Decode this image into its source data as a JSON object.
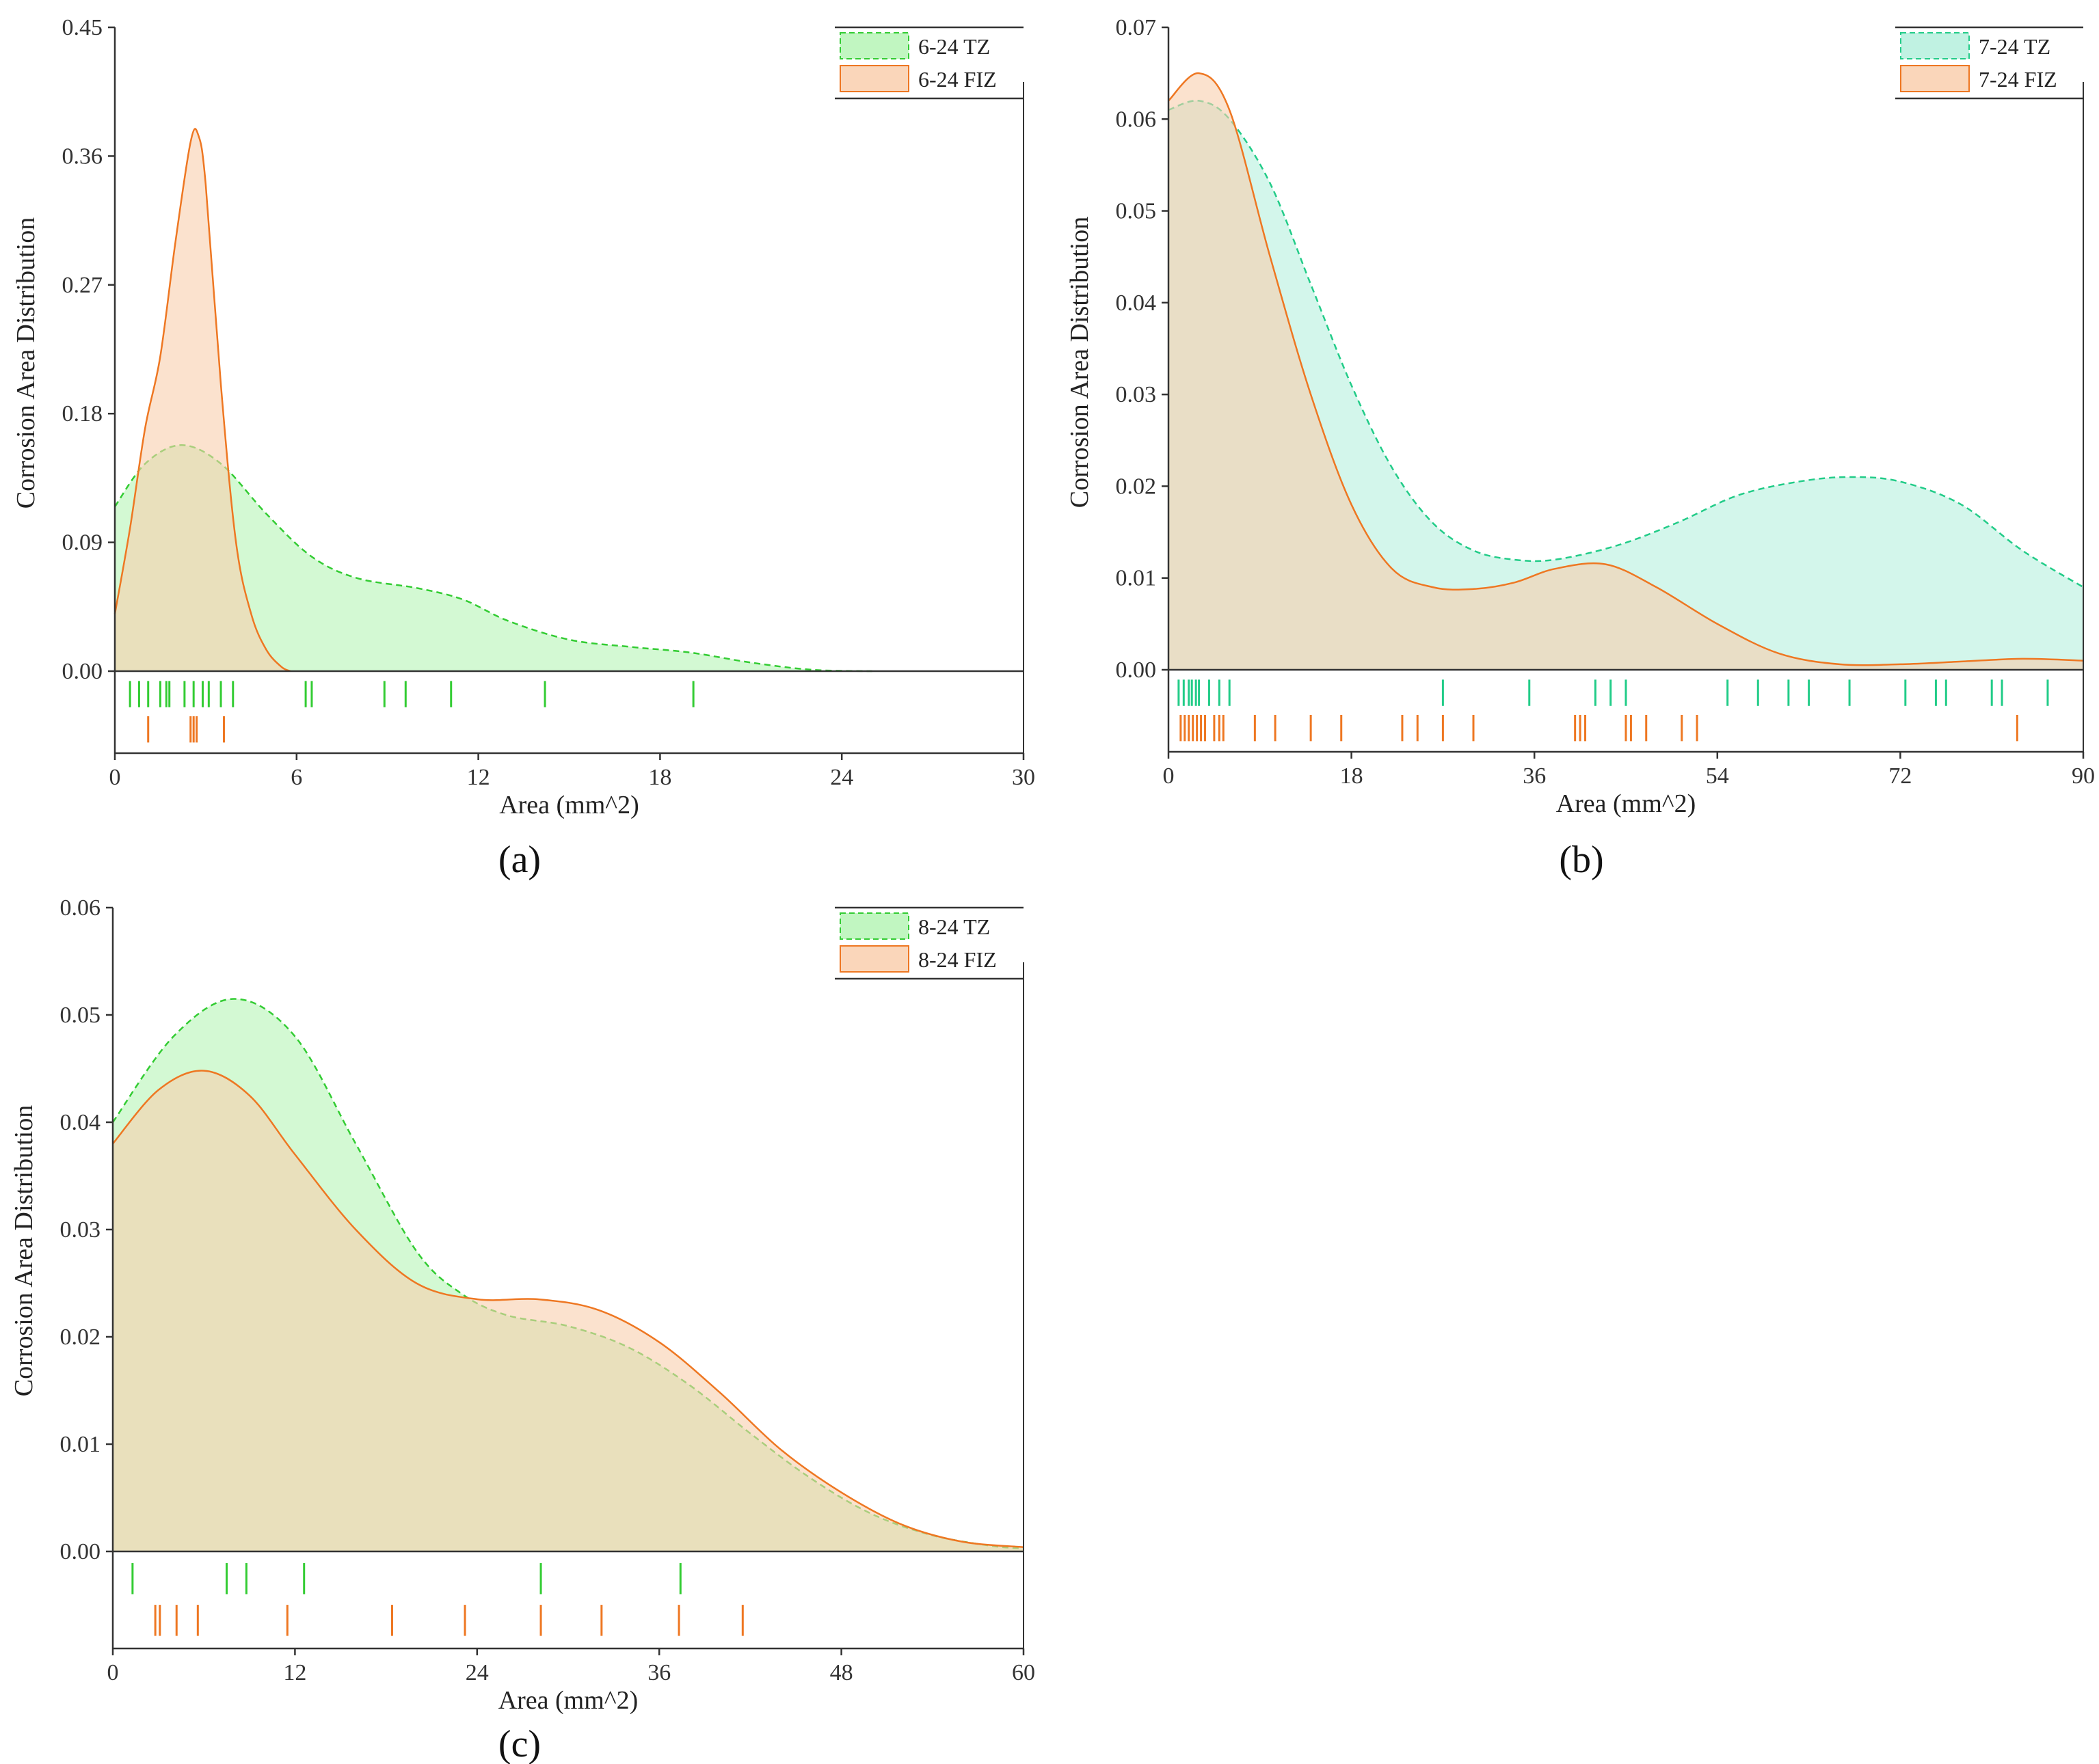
{
  "colors": {
    "tz_a_fill": "#b6f5b6",
    "tz_a_line": "#33cc33",
    "tz_b_fill": "#b5f0dd",
    "tz_b_line": "#22cc88",
    "fiz_fill": "#f9cfae",
    "fiz_line": "#ee7722",
    "fill_opacity": 0.6
  },
  "chart_data": [
    {
      "type": "area",
      "panel": "(a)",
      "xlabel": "Area (mm^2)",
      "ylabel": "Corrosion Area Distribution",
      "xlim": [
        0,
        30
      ],
      "ylim": [
        0,
        0.45
      ],
      "xticks": [
        "0",
        "6",
        "12",
        "18",
        "24",
        "30"
      ],
      "yticks": [
        "0.00",
        "0.09",
        "0.18",
        "0.27",
        "0.36",
        "0.45"
      ],
      "legend_position": "top-right",
      "legend": [
        "6-24 TZ",
        "6-24 FIZ"
      ],
      "series": [
        {
          "name": "6-24 TZ",
          "style": "dashed",
          "x": [
            0,
            1,
            2.2,
            3.5,
            5,
            6.5,
            8,
            10,
            11.5,
            13,
            15,
            17,
            19,
            21,
            23,
            25
          ],
          "y": [
            0.115,
            0.145,
            0.158,
            0.145,
            0.11,
            0.08,
            0.065,
            0.058,
            0.05,
            0.035,
            0.022,
            0.017,
            0.013,
            0.006,
            0.001,
            0
          ]
        },
        {
          "name": "6-24 FIZ",
          "style": "solid",
          "x": [
            0,
            0.5,
            1,
            1.5,
            2,
            2.5,
            2.75,
            3,
            3.5,
            4,
            4.5,
            5,
            5.5,
            5.8
          ],
          "y": [
            0.04,
            0.1,
            0.17,
            0.22,
            0.3,
            0.37,
            0.375,
            0.34,
            0.2,
            0.09,
            0.04,
            0.015,
            0.003,
            0
          ]
        }
      ],
      "rugs": [
        {
          "series": "6-24 TZ",
          "x": [
            0.5,
            0.8,
            1.1,
            1.5,
            1.7,
            1.8,
            2.3,
            2.6,
            2.9,
            3.1,
            3.5,
            3.9,
            6.3,
            6.5,
            8.9,
            9.6,
            11.1,
            14.2,
            19.1
          ]
        },
        {
          "series": "6-24 FIZ",
          "x": [
            1.1,
            2.5,
            2.6,
            2.7,
            3.6
          ]
        }
      ]
    },
    {
      "type": "area",
      "panel": "(b)",
      "xlabel": "Area (mm^2)",
      "ylabel": "Corrosion Area Distribution",
      "xlim": [
        0,
        90
      ],
      "ylim": [
        0,
        0.07
      ],
      "xticks": [
        "0",
        "18",
        "36",
        "54",
        "72",
        "90"
      ],
      "yticks": [
        "0.00",
        "0.01",
        "0.02",
        "0.03",
        "0.04",
        "0.05",
        "0.06",
        "0.07"
      ],
      "legend_position": "top-right",
      "legend": [
        "7-24 TZ",
        "7-24 FIZ"
      ],
      "series": [
        {
          "name": "7-24 TZ",
          "style": "dashed",
          "x": [
            0,
            3,
            6,
            10,
            14,
            18,
            22,
            26,
            30,
            34,
            38,
            44,
            50,
            56,
            62,
            67,
            72,
            78,
            84,
            90
          ],
          "y": [
            0.061,
            0.062,
            0.06,
            0.053,
            0.042,
            0.031,
            0.022,
            0.016,
            0.013,
            0.012,
            0.012,
            0.0135,
            0.016,
            0.019,
            0.0205,
            0.021,
            0.0205,
            0.018,
            0.013,
            0.009
          ]
        },
        {
          "name": "7-24 FIZ",
          "style": "solid",
          "x": [
            0,
            3,
            6,
            10,
            14,
            18,
            22,
            26,
            30,
            34,
            38,
            43,
            48,
            54,
            60,
            66,
            72,
            78,
            84,
            90
          ],
          "y": [
            0.062,
            0.065,
            0.061,
            0.045,
            0.03,
            0.018,
            0.011,
            0.009,
            0.0088,
            0.0095,
            0.011,
            0.0115,
            0.009,
            0.005,
            0.0018,
            0.0006,
            0.0006,
            0.0009,
            0.0012,
            0.001
          ]
        }
      ],
      "rugs": [
        {
          "series": "7-24 TZ",
          "x": [
            1,
            1.5,
            2,
            2.3,
            2.7,
            3,
            4,
            5,
            6,
            27,
            35.5,
            42,
            43.5,
            45,
            55,
            58,
            61,
            63,
            67,
            72.5,
            75.5,
            76.5,
            81,
            82,
            86.5
          ]
        },
        {
          "series": "7-24 FIZ",
          "x": [
            1.2,
            1.6,
            2,
            2.4,
            2.8,
            3.2,
            3.6,
            4.5,
            5,
            5.4,
            8.5,
            10.5,
            14,
            17,
            23,
            24.5,
            27,
            30,
            40,
            40.5,
            41,
            45,
            45.5,
            47,
            50.5,
            52,
            83.5
          ]
        }
      ]
    },
    {
      "type": "area",
      "panel": "(c)",
      "xlabel": "Area (mm^2)",
      "ylabel": "Corrosion Area Distribution",
      "xlim": [
        0,
        60
      ],
      "ylim": [
        0,
        0.06
      ],
      "xticks": [
        "0",
        "12",
        "24",
        "36",
        "48",
        "60"
      ],
      "yticks": [
        "0.00",
        "0.01",
        "0.02",
        "0.03",
        "0.04",
        "0.05",
        "0.06"
      ],
      "legend_position": "top-right",
      "legend": [
        "8-24 TZ",
        "8-24 FIZ"
      ],
      "series": [
        {
          "name": "8-24 TZ",
          "style": "dashed",
          "x": [
            0,
            4,
            8,
            12,
            16,
            20,
            23,
            26,
            30,
            34,
            38,
            42,
            46,
            50,
            54,
            58,
            60
          ],
          "y": [
            0.04,
            0.048,
            0.0515,
            0.048,
            0.038,
            0.028,
            0.024,
            0.022,
            0.021,
            0.019,
            0.0155,
            0.011,
            0.0068,
            0.0035,
            0.0015,
            0.0005,
            0.0003
          ]
        },
        {
          "name": "8-24 FIZ",
          "style": "solid",
          "x": [
            0,
            3,
            6,
            9,
            12,
            16,
            20,
            24,
            28,
            32,
            36,
            40,
            44,
            48,
            52,
            56,
            60
          ],
          "y": [
            0.038,
            0.043,
            0.0448,
            0.0425,
            0.037,
            0.03,
            0.025,
            0.0235,
            0.0235,
            0.0225,
            0.0195,
            0.0148,
            0.0095,
            0.0055,
            0.0025,
            0.0009,
            0.0004
          ]
        }
      ],
      "rugs": [
        {
          "series": "8-24 TZ",
          "x": [
            1.3,
            7.5,
            8.8,
            12.6,
            28.2,
            37.4
          ]
        },
        {
          "series": "8-24 FIZ",
          "x": [
            2.8,
            3.1,
            4.2,
            5.6,
            11.5,
            18.4,
            23.2,
            28.2,
            32.2,
            37.3,
            41.5
          ]
        }
      ]
    }
  ]
}
